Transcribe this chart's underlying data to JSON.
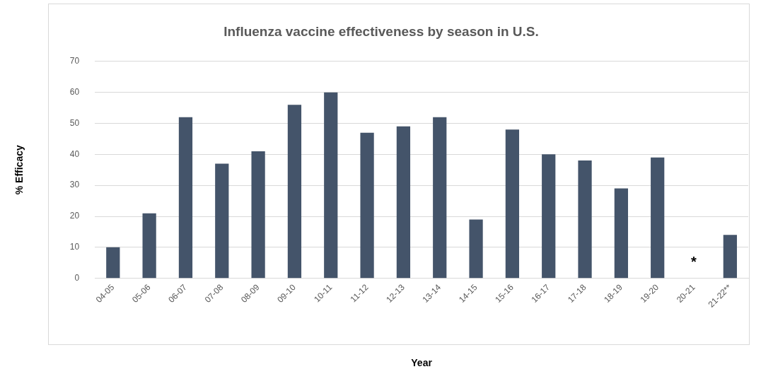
{
  "chart_data": {
    "type": "bar",
    "title": "Influenza vaccine effectiveness by season in U.S.",
    "xlabel": "Year",
    "ylabel": "% Efficacy",
    "categories": [
      "04-05",
      "05-06",
      "06-07",
      "07-08",
      "08-09",
      "09-10",
      "10-11",
      "11-12",
      "12-13",
      "13-14",
      "14-15",
      "15-16",
      "16-17",
      "17-18",
      "18-19",
      "19-20",
      "20-21",
      "21-22**"
    ],
    "values": [
      10,
      21,
      52,
      37,
      41,
      56,
      60,
      47,
      49,
      52,
      19,
      48,
      40,
      38,
      29,
      39,
      null,
      14
    ],
    "color": "#44546a",
    "ylim": [
      0,
      70
    ],
    "yticks": [
      0,
      10,
      20,
      30,
      40,
      50,
      60,
      70
    ],
    "grid": "y",
    "legend": false,
    "annotations": [
      "*"
    ]
  }
}
